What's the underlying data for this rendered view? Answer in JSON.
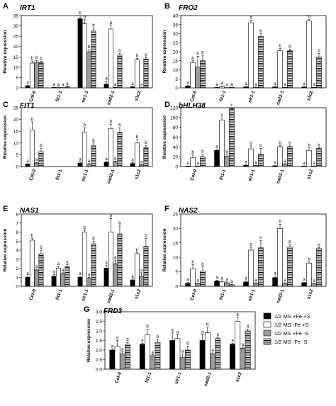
{
  "figure": {
    "ylabel": "Relative expression",
    "x_categories": [
      "Col-0",
      "fit1-1",
      "sir1-1",
      "cad2-1",
      "s1c2"
    ],
    "legend": {
      "items": [
        {
          "label": "1/2 MS +Fe +S",
          "color": "#000000",
          "pattern": "solid"
        },
        {
          "label": "1/2 MS -Fe +S",
          "color": "#ffffff",
          "pattern": "solid"
        },
        {
          "label": "1/2 MS +Fe -S",
          "color": "#9a9a9a",
          "pattern": "solid"
        },
        {
          "label": "1/2 MS -Fe -S",
          "color": "#ffffff",
          "pattern": "hstripe"
        }
      ]
    }
  },
  "chart_data": [
    {
      "panel": "A",
      "gene": "IRT1",
      "type": "bar",
      "categories": [
        "Col-0",
        "fit1-1",
        "sir1-1",
        "cad2-1",
        "s1c2"
      ],
      "ylim": [
        0,
        35
      ],
      "yticks": [
        0,
        5,
        10,
        15,
        20,
        25,
        30,
        35
      ],
      "series": [
        {
          "values": [
            1.0,
            0.2,
            33.5,
            1.8,
            0.5
          ],
          "errors": [
            0.3,
            0.1,
            1.5,
            1.4,
            0.2
          ],
          "letters": [
            "a",
            "a",
            "b",
            "a",
            "a"
          ]
        },
        {
          "values": [
            12.0,
            0.3,
            31.0,
            28.5,
            13.5
          ],
          "errors": [
            1.0,
            0.1,
            2.0,
            1.5,
            0.8
          ],
          "letters": [
            "b",
            "a",
            "b",
            "b",
            "b"
          ]
        },
        {
          "values": [
            12.5,
            0.1,
            17.5,
            0.2,
            0.1
          ],
          "errors": [
            0.8,
            0.05,
            1.0,
            0.1,
            0.05
          ],
          "letters": [
            "b",
            "a",
            "b",
            "a",
            "a"
          ]
        },
        {
          "values": [
            12.3,
            0.5,
            27.5,
            15.8,
            14.0
          ],
          "errors": [
            0.6,
            0.2,
            1.5,
            0.8,
            0.6
          ],
          "letters": [
            "b",
            "a",
            "b",
            "b",
            "b"
          ]
        }
      ]
    },
    {
      "panel": "B",
      "gene": "FRO2",
      "type": "bar",
      "categories": [
        "Col-0",
        "fit1-1",
        "sir1-1",
        "cad2-1",
        "s1c2"
      ],
      "ylim": [
        0,
        40
      ],
      "yticks": [
        0,
        5,
        10,
        15,
        20,
        25,
        30,
        35,
        40
      ],
      "series": [
        {
          "values": [
            1.0,
            0.2,
            0.5,
            0.5,
            0.5
          ],
          "errors": [
            0.3,
            0.1,
            0.2,
            0.2,
            0.2
          ],
          "letters": [
            "a",
            "a",
            "a",
            "a",
            "a"
          ]
        },
        {
          "values": [
            14.0,
            0.8,
            36.0,
            20.5,
            37.0
          ],
          "errors": [
            1.0,
            0.3,
            1.5,
            1.2,
            0.8
          ],
          "letters": [
            "b",
            "a",
            "b",
            "b",
            "b"
          ]
        },
        {
          "values": [
            11.5,
            0.1,
            0.3,
            0.2,
            0.2
          ],
          "errors": [
            6.0,
            0.05,
            0.1,
            0.1,
            0.1
          ],
          "letters": [
            "b",
            "a",
            "a",
            "a",
            "a"
          ]
        },
        {
          "values": [
            15.0,
            0.3,
            28.5,
            20.5,
            17.0
          ],
          "errors": [
            3.0,
            0.1,
            1.5,
            0.8,
            2.0
          ],
          "letters": [
            "b",
            "a",
            "b",
            "b",
            "b"
          ]
        }
      ]
    },
    {
      "panel": "C",
      "gene": "FIT1",
      "type": "bar",
      "categories": [
        "Col-0",
        "fit1-1",
        "sir1-1",
        "cad2-1",
        "s1c2"
      ],
      "ylim": [
        0,
        25
      ],
      "yticks": [
        0,
        5,
        10,
        15,
        20,
        25
      ],
      "series": [
        {
          "values": [
            1.0,
            0,
            1.5,
            1.8,
            1.3
          ],
          "errors": [
            0.2,
            0,
            0.5,
            0.3,
            0.3
          ],
          "letters": [
            "a",
            "",
            "a",
            "a",
            "a"
          ]
        },
        {
          "values": [
            15.5,
            0,
            14.5,
            16.2,
            10.0
          ],
          "errors": [
            3.5,
            0,
            2.0,
            1.8,
            1.5
          ],
          "letters": [
            "b",
            "",
            "b",
            "b",
            "b"
          ]
        },
        {
          "values": [
            1.5,
            0,
            1.0,
            2.0,
            0.6
          ],
          "errors": [
            0.3,
            0,
            0.2,
            0.3,
            0.2
          ],
          "letters": [
            "a",
            "",
            "a",
            "a",
            "a"
          ]
        },
        {
          "values": [
            6.3,
            0,
            9.0,
            14.5,
            8.0
          ],
          "errors": [
            1.5,
            0,
            1.0,
            2.0,
            1.0
          ],
          "letters": [
            "b",
            "",
            "b",
            "b",
            "b"
          ]
        }
      ]
    },
    {
      "panel": "D",
      "gene": "bHLH38",
      "type": "bar",
      "categories": [
        "Col-0",
        "fit1-1",
        "sir1-1",
        "cad2-1",
        "s1c2"
      ],
      "ylim": [
        0,
        120
      ],
      "yticks": [
        0,
        20,
        40,
        60,
        80,
        100,
        120
      ],
      "series": [
        {
          "values": [
            1.0,
            33.0,
            2.5,
            1.5,
            1.0
          ],
          "errors": [
            0.3,
            2.0,
            1.0,
            0.5,
            0.3
          ],
          "letters": [
            "a",
            "b",
            "a",
            "a",
            "a"
          ]
        },
        {
          "values": [
            18.0,
            95.0,
            36.0,
            40.5,
            33.0
          ],
          "errors": [
            6.0,
            4.0,
            6.0,
            2.0,
            5.0
          ],
          "letters": [
            "b",
            "c",
            "b",
            "b",
            "b"
          ]
        },
        {
          "values": [
            1.0,
            21.0,
            2.0,
            5.0,
            1.0
          ],
          "errors": [
            0.3,
            3.0,
            1.0,
            1.0,
            0.3
          ],
          "letters": [
            "a",
            "b",
            "a",
            "a",
            "a"
          ]
        },
        {
          "values": [
            20.0,
            118.0,
            25.0,
            40.5,
            37.0
          ],
          "errors": [
            5.0,
            4.0,
            12.0,
            1.5,
            1.5
          ],
          "letters": [
            "b",
            "c",
            "b",
            "b",
            "b"
          ]
        }
      ]
    },
    {
      "panel": "E",
      "gene": "NAS1",
      "type": "bar",
      "categories": [
        "Col-0",
        "fit1-1",
        "sir1-1",
        "cad2-1",
        "s1c2"
      ],
      "ylim": [
        0,
        8
      ],
      "yticks": [
        0,
        1,
        2,
        3,
        4,
        5,
        6,
        7,
        8
      ],
      "series": [
        {
          "values": [
            1.0,
            1.1,
            1.0,
            2.0,
            0.7
          ],
          "errors": [
            0.1,
            0.2,
            0.1,
            0.3,
            0.1
          ],
          "letters": [
            "a",
            "a",
            "a",
            "a",
            "a"
          ]
        },
        {
          "values": [
            5.1,
            2.0,
            6.0,
            6.0,
            3.6
          ],
          "errors": [
            0.2,
            0.2,
            0.2,
            1.5,
            0.1
          ],
          "letters": [
            "b",
            "a",
            "b",
            "b",
            "b"
          ]
        },
        {
          "values": [
            1.8,
            1.4,
            0.9,
            2.5,
            1.1
          ],
          "errors": [
            0.1,
            0.1,
            0.1,
            0.4,
            0.4
          ],
          "letters": [
            "a",
            "a",
            "a",
            "a",
            "a"
          ]
        },
        {
          "values": [
            3.6,
            2.2,
            4.7,
            5.8,
            4.4
          ],
          "errors": [
            0.4,
            0.2,
            0.3,
            0.9,
            0.9
          ],
          "letters": [
            "b",
            "a",
            "b",
            "b",
            "b"
          ]
        }
      ]
    },
    {
      "panel": "F",
      "gene": "NAS2",
      "type": "bar",
      "categories": [
        "Col-0",
        "fit1-1",
        "sir1-1",
        "cad2-1",
        "s1c2"
      ],
      "ylim": [
        0,
        25
      ],
      "yticks": [
        0,
        5,
        10,
        15,
        20,
        25
      ],
      "series": [
        {
          "values": [
            1.0,
            1.8,
            1.5,
            3.0,
            1.2
          ],
          "errors": [
            0.3,
            0.3,
            0.3,
            0.5,
            0.2
          ],
          "letters": [
            "a",
            "a",
            "a",
            "a",
            "a"
          ]
        },
        {
          "values": [
            6.0,
            1.5,
            12.5,
            20.0,
            8.0
          ],
          "errors": [
            1.5,
            0.3,
            1.0,
            1.5,
            0.4
          ],
          "letters": [
            "b",
            "a",
            "b",
            "b",
            "b"
          ]
        },
        {
          "values": [
            0.9,
            1.2,
            1.0,
            1.0,
            0.8
          ],
          "errors": [
            0.2,
            0.3,
            0.2,
            0.2,
            0.2
          ],
          "letters": [
            "a",
            "a",
            "a",
            "a",
            "a"
          ]
        },
        {
          "values": [
            5.3,
            0.5,
            13.3,
            13.5,
            13.0
          ],
          "errors": [
            1.5,
            0.2,
            2.5,
            1.0,
            0.4
          ],
          "letters": [
            "b",
            "a",
            "b",
            "b",
            "b"
          ]
        }
      ]
    },
    {
      "panel": "G",
      "gene": "FRD3",
      "type": "bar",
      "categories": [
        "Col-0",
        "fit1-1",
        "sir1-1",
        "cad2-1",
        "s1c2"
      ],
      "ylim": [
        0,
        3.0
      ],
      "yticks": [
        0.0,
        0.5,
        1.0,
        1.5,
        2.0,
        2.5,
        3.0
      ],
      "series": [
        {
          "values": [
            1.0,
            1.3,
            1.5,
            1.5,
            1.3
          ],
          "errors": [
            0.05,
            0.05,
            0.4,
            0.3,
            0.05
          ],
          "letters": [
            "a",
            "a",
            "a",
            "a",
            "a"
          ]
        },
        {
          "values": [
            1.2,
            1.8,
            1.6,
            1.9,
            2.5
          ],
          "errors": [
            0.3,
            0.3,
            0.2,
            0.3,
            0.2
          ],
          "letters": [
            "a",
            "b",
            "a",
            "b",
            "b"
          ]
        },
        {
          "values": [
            0.8,
            0.7,
            0.6,
            0.8,
            1.1
          ],
          "errors": [
            0.1,
            0.05,
            0.2,
            0.05,
            0.05
          ],
          "letters": [
            "a",
            "a",
            "a",
            "a",
            "a"
          ]
        },
        {
          "values": [
            1.3,
            1.4,
            1.0,
            1.6,
            2.0
          ],
          "errors": [
            0.1,
            0.15,
            0.2,
            0.05,
            0.1
          ],
          "letters": [
            "b",
            "b",
            "b",
            "b",
            "b"
          ]
        }
      ]
    }
  ]
}
